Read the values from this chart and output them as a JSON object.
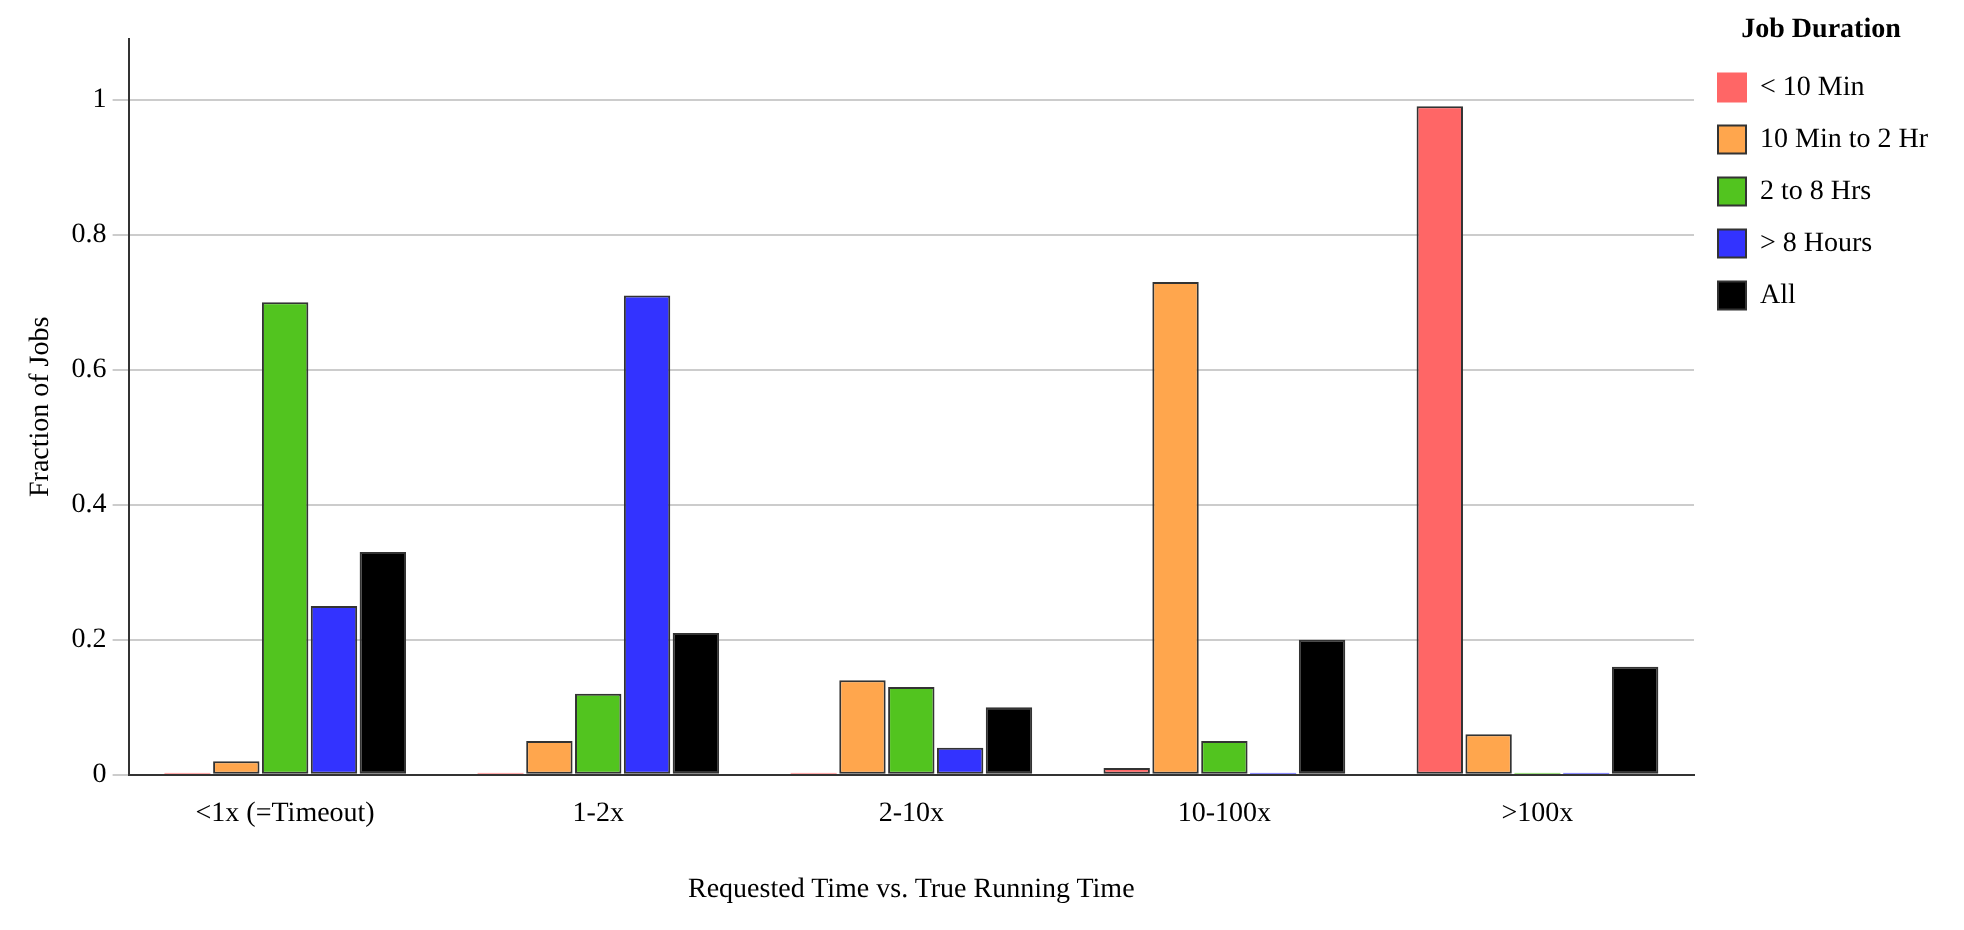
{
  "chart_data": {
    "type": "bar",
    "xlabel": "Requested Time vs. True Running Time",
    "ylabel": "Fraction of Jobs",
    "legend_title": "Job Duration",
    "categories": [
      "<1x (=Timeout)",
      "1-2x",
      "2-10x",
      "10-100x",
      ">100x"
    ],
    "series": [
      {
        "name": "< 10 Min",
        "color": "#ff6666",
        "values": [
          0,
          0,
          0,
          0.01,
          0.99
        ]
      },
      {
        "name": "10 Min to 2 Hr",
        "color": "#ffa64d",
        "values": [
          0.02,
          0.05,
          0.14,
          0.73,
          0.06
        ]
      },
      {
        "name": "2 to 8 Hrs",
        "color": "#52c41f",
        "values": [
          0.7,
          0.12,
          0.13,
          0.05,
          0
        ]
      },
      {
        "name": "> 8 Hours",
        "color": "#3333ff",
        "values": [
          0.25,
          0.71,
          0.04,
          0,
          0
        ]
      },
      {
        "name": "All",
        "color": "#000000",
        "values": [
          0.33,
          0.21,
          0.1,
          0.2,
          0.16
        ]
      }
    ],
    "ylim": [
      0,
      1.09
    ],
    "yticks": [
      0,
      0.2,
      0.4,
      0.6,
      0.8,
      1
    ],
    "grid": "y",
    "legend": "top right"
  }
}
